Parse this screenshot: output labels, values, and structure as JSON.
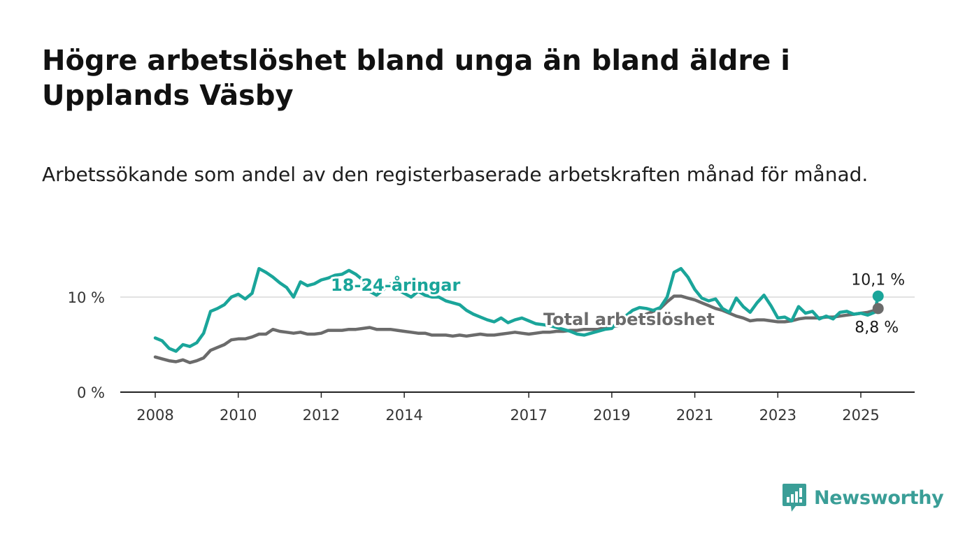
{
  "title": "Högre arbetslöshet bland unga än bland äldre i Upplands Väsby",
  "subtitle": "Arbetssökande som andel av den registerbaserade arbetskraften månad för månad.",
  "brand": {
    "name": "Newsworthy",
    "color": "#3a9e97",
    "icon": "bar-chart-speech-bubble-icon"
  },
  "chart_data": {
    "type": "line",
    "x_ticks": [
      "2008",
      "2010",
      "2012",
      "2014",
      "2017",
      "2019",
      "2021",
      "2023",
      "2025"
    ],
    "y_ticks": [
      "0 %",
      "10 %"
    ],
    "ylim": [
      0,
      14
    ],
    "grid": "horizontal at 10",
    "legend": "inline labels",
    "series": [
      {
        "name": "18-24-åringar",
        "color": "#1aa59a",
        "end_label": "10,1 %",
        "points": [
          [
            "2008-01",
            5.7
          ],
          [
            "2008-03",
            5.4
          ],
          [
            "2008-05",
            4.6
          ],
          [
            "2008-07",
            4.3
          ],
          [
            "2008-09",
            5.0
          ],
          [
            "2008-11",
            4.8
          ],
          [
            "2009-01",
            5.2
          ],
          [
            "2009-03",
            6.2
          ],
          [
            "2009-05",
            8.5
          ],
          [
            "2009-07",
            8.8
          ],
          [
            "2009-09",
            9.2
          ],
          [
            "2009-11",
            10.0
          ],
          [
            "2010-01",
            10.3
          ],
          [
            "2010-03",
            9.8
          ],
          [
            "2010-05",
            10.4
          ],
          [
            "2010-07",
            13.0
          ],
          [
            "2010-09",
            12.6
          ],
          [
            "2010-11",
            12.1
          ],
          [
            "2011-01",
            11.5
          ],
          [
            "2011-03",
            11.0
          ],
          [
            "2011-05",
            10.0
          ],
          [
            "2011-07",
            11.6
          ],
          [
            "2011-09",
            11.2
          ],
          [
            "2011-11",
            11.4
          ],
          [
            "2012-01",
            11.8
          ],
          [
            "2012-03",
            12.0
          ],
          [
            "2012-05",
            12.3
          ],
          [
            "2012-07",
            12.4
          ],
          [
            "2012-09",
            12.8
          ],
          [
            "2012-11",
            12.4
          ],
          [
            "2013-01",
            11.8
          ],
          [
            "2013-03",
            10.6
          ],
          [
            "2013-05",
            10.2
          ],
          [
            "2013-07",
            10.8
          ],
          [
            "2013-09",
            11.4
          ],
          [
            "2013-11",
            10.8
          ],
          [
            "2014-01",
            10.4
          ],
          [
            "2014-03",
            10.0
          ],
          [
            "2014-05",
            10.6
          ],
          [
            "2014-07",
            10.2
          ],
          [
            "2014-09",
            10.0
          ],
          [
            "2014-11",
            10.0
          ],
          [
            "2015-01",
            9.6
          ],
          [
            "2015-03",
            9.4
          ],
          [
            "2015-05",
            9.2
          ],
          [
            "2015-07",
            8.6
          ],
          [
            "2015-09",
            8.2
          ],
          [
            "2015-11",
            7.9
          ],
          [
            "2016-01",
            7.6
          ],
          [
            "2016-03",
            7.4
          ],
          [
            "2016-05",
            7.8
          ],
          [
            "2016-07",
            7.3
          ],
          [
            "2016-09",
            7.6
          ],
          [
            "2016-11",
            7.8
          ],
          [
            "2017-01",
            7.5
          ],
          [
            "2017-03",
            7.2
          ],
          [
            "2017-05",
            7.1
          ],
          [
            "2017-07",
            7.0
          ],
          [
            "2017-09",
            6.8
          ],
          [
            "2017-11",
            6.6
          ],
          [
            "2018-01",
            6.4
          ],
          [
            "2018-03",
            6.1
          ],
          [
            "2018-05",
            6.0
          ],
          [
            "2018-07",
            6.2
          ],
          [
            "2018-09",
            6.4
          ],
          [
            "2018-11",
            6.6
          ],
          [
            "2019-01",
            6.7
          ],
          [
            "2019-03",
            7.5
          ],
          [
            "2019-05",
            8.0
          ],
          [
            "2019-07",
            8.6
          ],
          [
            "2019-09",
            8.9
          ],
          [
            "2019-11",
            8.8
          ],
          [
            "2020-01",
            8.6
          ],
          [
            "2020-03",
            8.9
          ],
          [
            "2020-05",
            10.0
          ],
          [
            "2020-07",
            12.6
          ],
          [
            "2020-09",
            13.0
          ],
          [
            "2020-11",
            12.1
          ],
          [
            "2021-01",
            10.8
          ],
          [
            "2021-03",
            9.9
          ],
          [
            "2021-05",
            9.6
          ],
          [
            "2021-07",
            9.8
          ],
          [
            "2021-09",
            8.8
          ],
          [
            "2021-11",
            8.4
          ],
          [
            "2022-01",
            9.9
          ],
          [
            "2022-03",
            9.0
          ],
          [
            "2022-05",
            8.4
          ],
          [
            "2022-07",
            9.4
          ],
          [
            "2022-09",
            10.2
          ],
          [
            "2022-11",
            9.1
          ],
          [
            "2023-01",
            7.8
          ],
          [
            "2023-03",
            7.9
          ],
          [
            "2023-05",
            7.5
          ],
          [
            "2023-07",
            9.0
          ],
          [
            "2023-09",
            8.3
          ],
          [
            "2023-11",
            8.5
          ],
          [
            "2024-01",
            7.7
          ],
          [
            "2024-03",
            8.0
          ],
          [
            "2024-05",
            7.7
          ],
          [
            "2024-07",
            8.4
          ],
          [
            "2024-09",
            8.5
          ],
          [
            "2024-11",
            8.2
          ],
          [
            "2025-01",
            8.3
          ],
          [
            "2025-03",
            8.1
          ],
          [
            "2025-05",
            8.4
          ],
          [
            "2025-06",
            10.1
          ]
        ]
      },
      {
        "name": "Total arbetslöshet",
        "color": "#6b6b6b",
        "end_label": "8,8 %",
        "points": [
          [
            "2008-01",
            3.7
          ],
          [
            "2008-03",
            3.5
          ],
          [
            "2008-05",
            3.3
          ],
          [
            "2008-07",
            3.2
          ],
          [
            "2008-09",
            3.4
          ],
          [
            "2008-11",
            3.1
          ],
          [
            "2009-01",
            3.3
          ],
          [
            "2009-03",
            3.6
          ],
          [
            "2009-05",
            4.4
          ],
          [
            "2009-07",
            4.7
          ],
          [
            "2009-09",
            5.0
          ],
          [
            "2009-11",
            5.5
          ],
          [
            "2010-01",
            5.6
          ],
          [
            "2010-03",
            5.6
          ],
          [
            "2010-05",
            5.8
          ],
          [
            "2010-07",
            6.1
          ],
          [
            "2010-09",
            6.1
          ],
          [
            "2010-11",
            6.6
          ],
          [
            "2011-01",
            6.4
          ],
          [
            "2011-03",
            6.3
          ],
          [
            "2011-05",
            6.2
          ],
          [
            "2011-07",
            6.3
          ],
          [
            "2011-09",
            6.1
          ],
          [
            "2011-11",
            6.1
          ],
          [
            "2012-01",
            6.2
          ],
          [
            "2012-03",
            6.5
          ],
          [
            "2012-05",
            6.5
          ],
          [
            "2012-07",
            6.5
          ],
          [
            "2012-09",
            6.6
          ],
          [
            "2012-11",
            6.6
          ],
          [
            "2013-01",
            6.7
          ],
          [
            "2013-03",
            6.8
          ],
          [
            "2013-05",
            6.6
          ],
          [
            "2013-07",
            6.6
          ],
          [
            "2013-09",
            6.6
          ],
          [
            "2013-11",
            6.5
          ],
          [
            "2014-01",
            6.4
          ],
          [
            "2014-03",
            6.3
          ],
          [
            "2014-05",
            6.2
          ],
          [
            "2014-07",
            6.2
          ],
          [
            "2014-09",
            6.0
          ],
          [
            "2014-11",
            6.0
          ],
          [
            "2015-01",
            6.0
          ],
          [
            "2015-03",
            5.9
          ],
          [
            "2015-05",
            6.0
          ],
          [
            "2015-07",
            5.9
          ],
          [
            "2015-09",
            6.0
          ],
          [
            "2015-11",
            6.1
          ],
          [
            "2016-01",
            6.0
          ],
          [
            "2016-03",
            6.0
          ],
          [
            "2016-05",
            6.1
          ],
          [
            "2016-07",
            6.2
          ],
          [
            "2016-09",
            6.3
          ],
          [
            "2016-11",
            6.2
          ],
          [
            "2017-01",
            6.1
          ],
          [
            "2017-03",
            6.2
          ],
          [
            "2017-05",
            6.3
          ],
          [
            "2017-07",
            6.3
          ],
          [
            "2017-09",
            6.4
          ],
          [
            "2017-11",
            6.4
          ],
          [
            "2018-01",
            6.5
          ],
          [
            "2018-03",
            6.5
          ],
          [
            "2018-05",
            6.6
          ],
          [
            "2018-07",
            6.6
          ],
          [
            "2018-09",
            6.6
          ],
          [
            "2018-11",
            6.8
          ],
          [
            "2019-01",
            6.9
          ],
          [
            "2019-03",
            7.0
          ],
          [
            "2019-05",
            7.2
          ],
          [
            "2019-07",
            7.5
          ],
          [
            "2019-09",
            7.8
          ],
          [
            "2019-11",
            8.2
          ],
          [
            "2020-01",
            8.5
          ],
          [
            "2020-03",
            8.8
          ],
          [
            "2020-05",
            9.5
          ],
          [
            "2020-07",
            10.1
          ],
          [
            "2020-09",
            10.1
          ],
          [
            "2020-11",
            9.9
          ],
          [
            "2021-01",
            9.7
          ],
          [
            "2021-03",
            9.4
          ],
          [
            "2021-05",
            9.1
          ],
          [
            "2021-07",
            8.8
          ],
          [
            "2021-09",
            8.6
          ],
          [
            "2021-11",
            8.3
          ],
          [
            "2022-01",
            8.0
          ],
          [
            "2022-03",
            7.8
          ],
          [
            "2022-05",
            7.5
          ],
          [
            "2022-07",
            7.6
          ],
          [
            "2022-09",
            7.6
          ],
          [
            "2022-11",
            7.5
          ],
          [
            "2023-01",
            7.4
          ],
          [
            "2023-03",
            7.4
          ],
          [
            "2023-05",
            7.5
          ],
          [
            "2023-07",
            7.7
          ],
          [
            "2023-09",
            7.8
          ],
          [
            "2023-11",
            7.8
          ],
          [
            "2024-01",
            7.8
          ],
          [
            "2024-03",
            7.9
          ],
          [
            "2024-05",
            7.9
          ],
          [
            "2024-07",
            8.0
          ],
          [
            "2024-09",
            8.1
          ],
          [
            "2024-11",
            8.2
          ],
          [
            "2025-01",
            8.3
          ],
          [
            "2025-03",
            8.4
          ],
          [
            "2025-05",
            8.6
          ],
          [
            "2025-06",
            8.8
          ]
        ]
      }
    ]
  }
}
